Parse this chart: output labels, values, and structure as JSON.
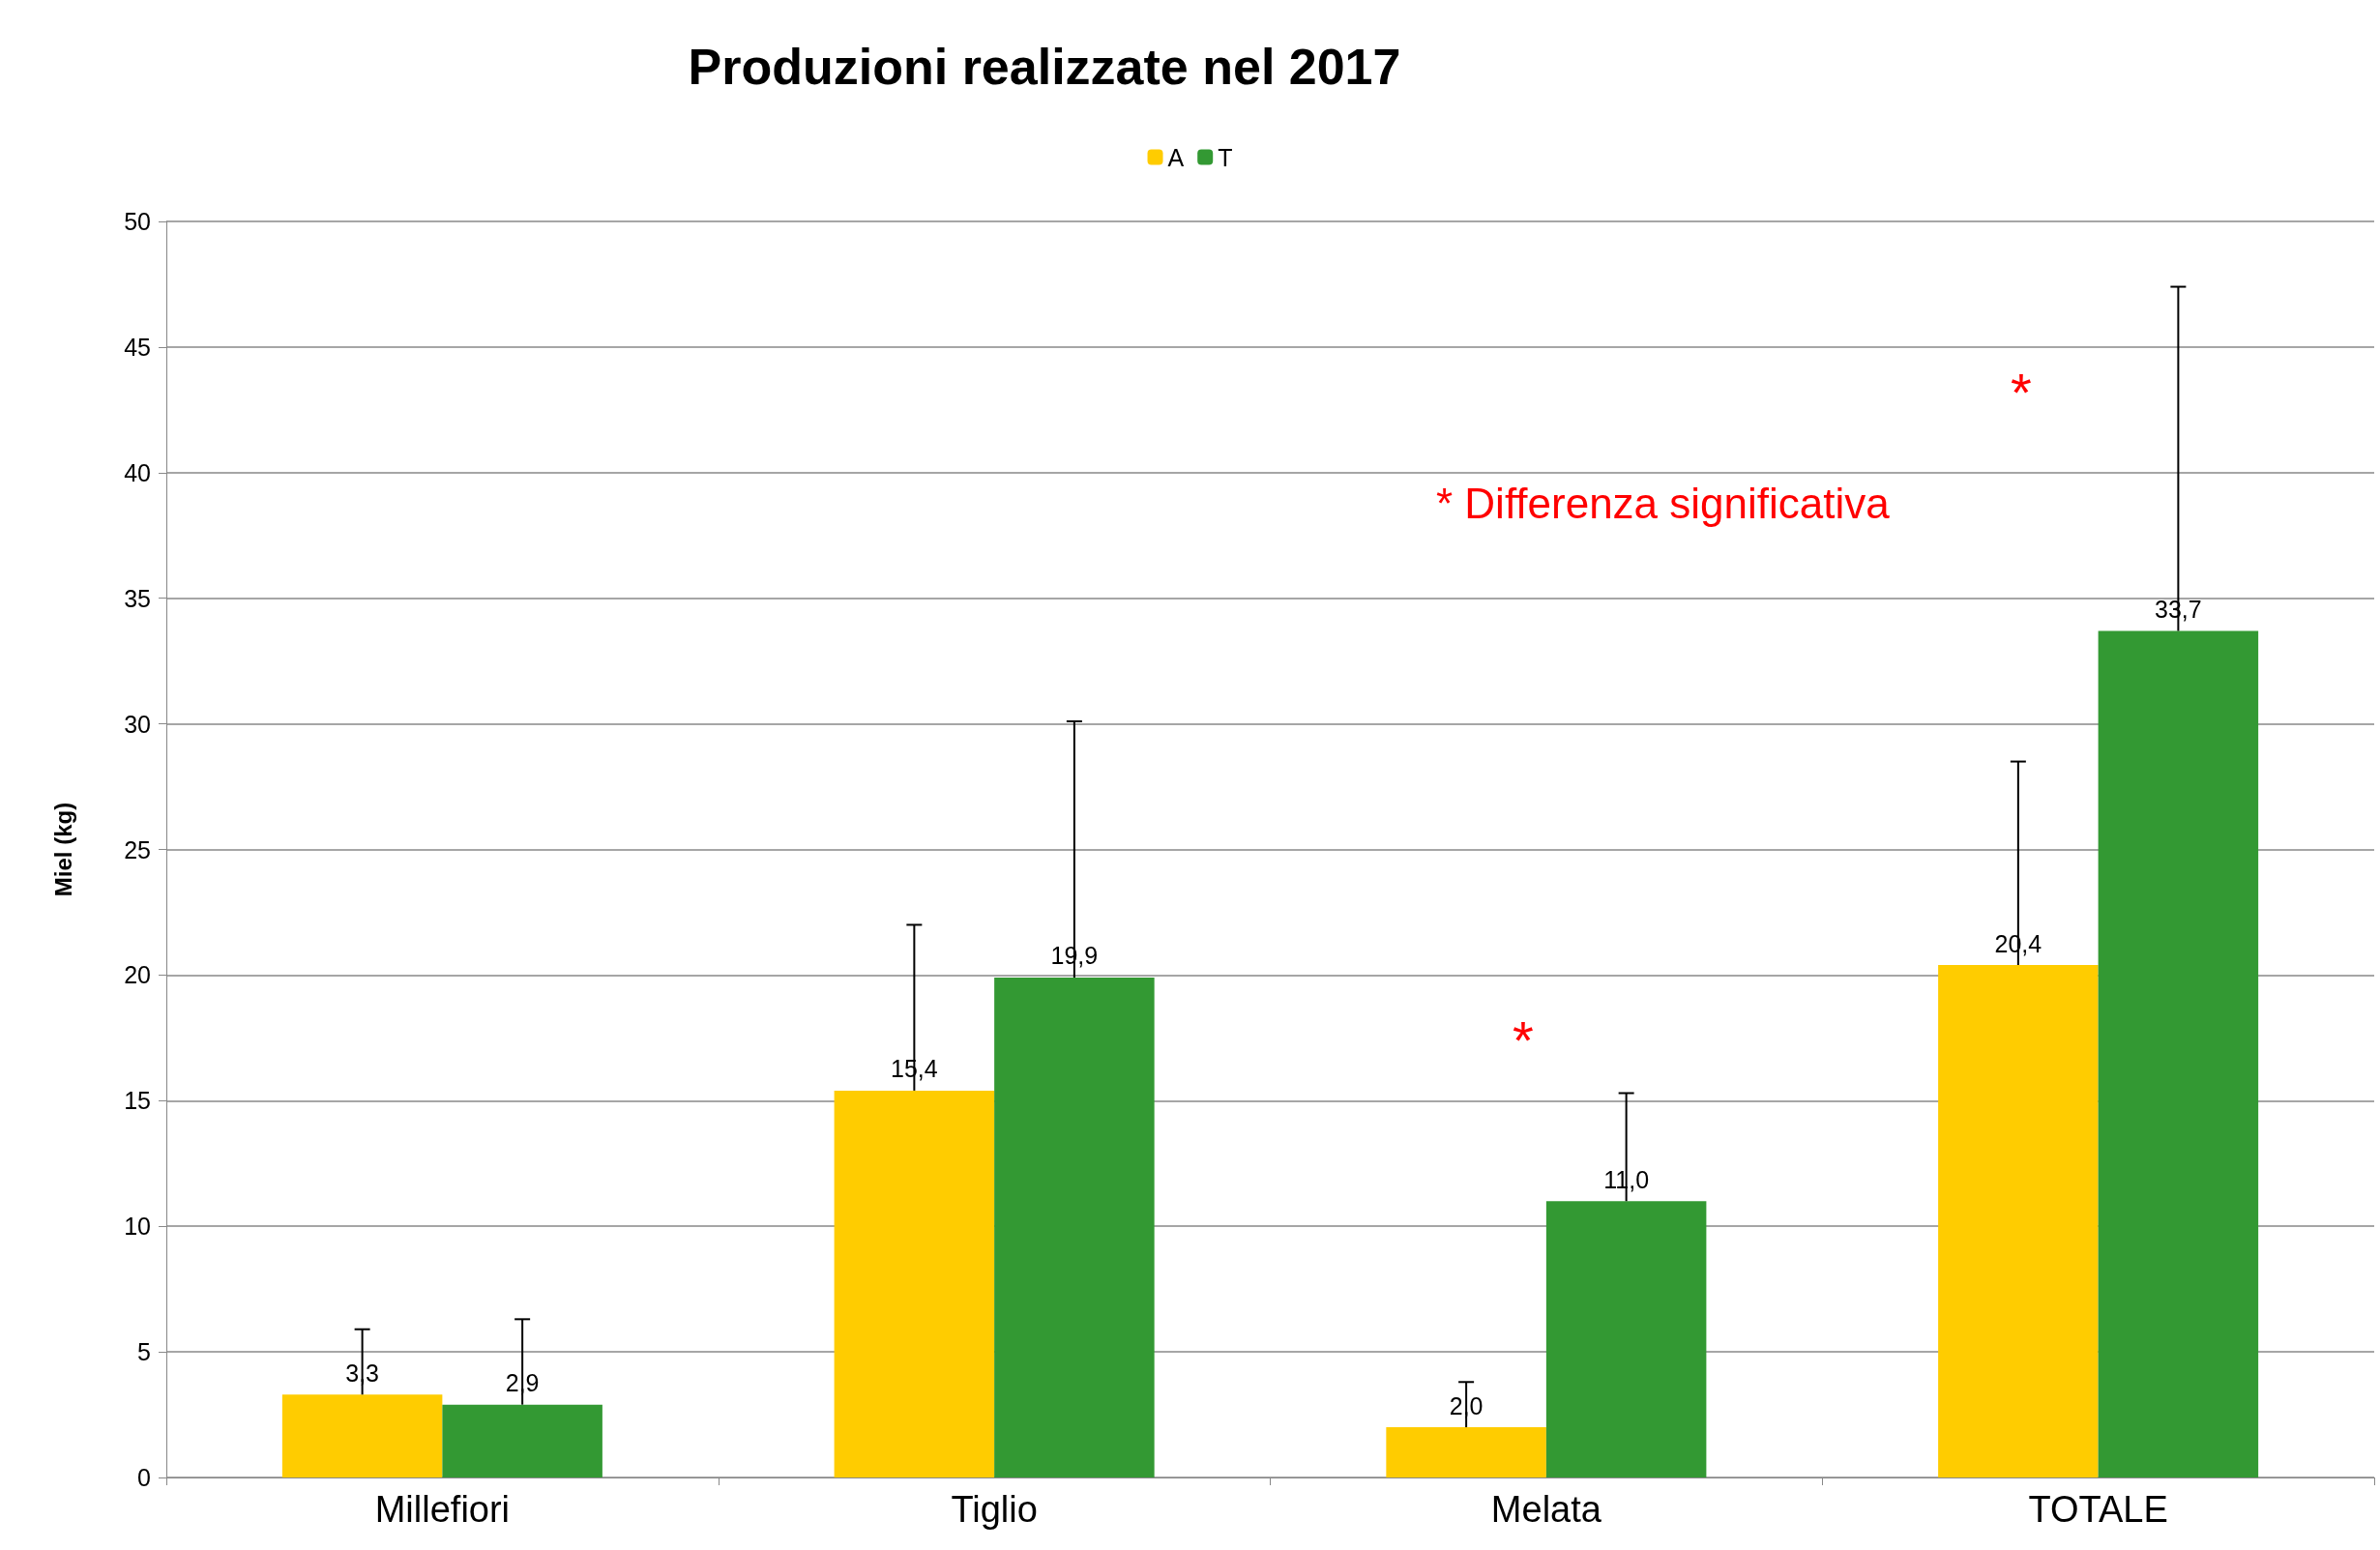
{
  "chart_data": {
    "type": "bar",
    "title": "Produzioni realizzate nel 2017",
    "ylabel": "Miel (kg)",
    "categories": [
      "Millefiori",
      "Tiglio",
      "Melata",
      "TOTALE"
    ],
    "series": [
      {
        "name": "A",
        "color": "#ffcc00",
        "values": [
          3.3,
          15.4,
          2.0,
          20.4
        ],
        "value_labels": [
          "3,3",
          "15,4",
          "2,0",
          "20,4"
        ],
        "errors": [
          [
            3.3,
            5.9
          ],
          [
            15.4,
            22.0
          ],
          [
            2.0,
            3.8
          ],
          [
            20.4,
            28.5
          ]
        ]
      },
      {
        "name": "T",
        "color": "#339933",
        "values": [
          2.9,
          19.9,
          11.0,
          33.7
        ],
        "value_labels": [
          "2,9",
          "19,9",
          "11,0",
          "33,7"
        ],
        "errors": [
          [
            2.9,
            6.3
          ],
          [
            19.9,
            30.1
          ],
          [
            11.0,
            15.3
          ],
          [
            33.7,
            47.4
          ]
        ]
      }
    ],
    "ylim": [
      0,
      50
    ],
    "yticks": [
      0,
      5,
      10,
      15,
      20,
      25,
      30,
      35,
      40,
      45,
      50
    ],
    "grid": "y",
    "legend": "top",
    "annotations": [
      "* Differenza significativa",
      "*",
      "*"
    ]
  }
}
